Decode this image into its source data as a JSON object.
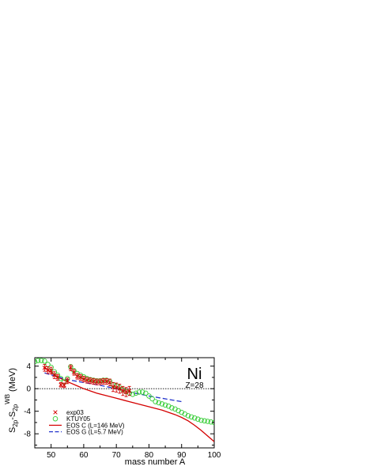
{
  "chart_data": {
    "type": "line",
    "xlabel": "mass number A",
    "ylabel_main": "S",
    "ylabel_sub1": "2p",
    "ylabel_mid": "-S",
    "ylabel_sub2": "2p",
    "ylabel_sup": "WB",
    "ylabel_unit": "(MeV)",
    "element_symbol": "Ni",
    "z_label": "Z=28",
    "xlim": [
      45,
      100
    ],
    "ylim": [
      -10.5,
      5.5
    ],
    "x_ticks": [
      50,
      60,
      70,
      80,
      90,
      100
    ],
    "y_ticks": [
      4,
      0,
      -4,
      -8
    ],
    "x_tick_labels": [
      "50",
      "60",
      "70",
      "80",
      "90",
      "100"
    ],
    "y_tick_labels": [
      "4",
      "0",
      "-4",
      "-8"
    ],
    "zero_line": true,
    "legend_position": "bottom-left",
    "series": [
      {
        "name": "exp03",
        "kind": "points-errorbars",
        "marker": "x",
        "color": "#d40000",
        "x": [
          48,
          49,
          50,
          51,
          52,
          53,
          54,
          55,
          56,
          57,
          58,
          59,
          60,
          61,
          62,
          63,
          64,
          65,
          66,
          67,
          68,
          69,
          70,
          71,
          72,
          73,
          74
        ],
        "y": [
          3.7,
          3.3,
          3.2,
          2.4,
          2.0,
          0.7,
          0.6,
          1.4,
          3.7,
          2.9,
          2.2,
          2.0,
          1.7,
          1.5,
          1.4,
          1.3,
          1.2,
          1.2,
          1.3,
          1.3,
          1.1,
          0.3,
          0.2,
          0.0,
          -0.4,
          -0.6,
          -0.4
        ],
        "err": [
          0.6,
          0.6,
          0.6,
          0.6,
          0.5,
          0.4,
          0.4,
          0.5,
          0.5,
          0.5,
          0.5,
          0.5,
          0.5,
          0.5,
          0.5,
          0.5,
          0.5,
          0.5,
          0.5,
          0.5,
          0.6,
          0.8,
          0.8,
          0.8,
          0.8,
          0.8,
          0.8
        ]
      },
      {
        "name": "KTUY05",
        "kind": "points",
        "marker": "circle",
        "color": "#33cc33",
        "x": [
          45,
          46,
          47,
          48,
          49,
          50,
          51,
          52,
          53,
          54,
          55,
          56,
          57,
          58,
          59,
          60,
          61,
          62,
          63,
          64,
          65,
          66,
          67,
          68,
          69,
          70,
          71,
          72,
          73,
          74,
          75,
          76,
          77,
          78,
          79,
          80,
          81,
          82,
          83,
          84,
          85,
          86,
          87,
          88,
          89,
          90,
          91,
          92,
          93,
          94,
          95,
          96,
          97,
          98,
          99,
          100
        ],
        "y": [
          4.8,
          5.0,
          5.0,
          4.9,
          4.3,
          3.8,
          3.0,
          2.4,
          1.8,
          1.2,
          1.8,
          3.9,
          3.2,
          2.7,
          2.4,
          2.1,
          1.8,
          1.6,
          1.5,
          1.4,
          1.4,
          1.5,
          1.5,
          1.3,
          0.7,
          0.5,
          0.2,
          -0.2,
          -0.5,
          -0.8,
          -1.0,
          -0.8,
          -0.6,
          -0.6,
          -0.8,
          -1.3,
          -1.8,
          -2.3,
          -2.5,
          -2.7,
          -2.9,
          -3.1,
          -3.4,
          -3.6,
          -3.9,
          -4.2,
          -4.5,
          -4.8,
          -5.0,
          -5.2,
          -5.4,
          -5.6,
          -5.7,
          -5.8,
          -5.9,
          -6.0
        ]
      },
      {
        "name": "EOS C (L=146 MeV)",
        "kind": "line",
        "style": "solid",
        "color": "#d40000",
        "x": [
          48,
          50,
          52,
          54,
          56,
          58,
          60,
          62,
          64,
          66,
          68,
          70,
          72,
          74,
          76,
          78,
          80,
          82,
          84,
          86,
          88,
          90,
          92,
          94,
          96,
          98,
          100
        ],
        "y": [
          3.8,
          2.9,
          2.1,
          1.5,
          1.0,
          0.5,
          0.0,
          -0.4,
          -0.8,
          -1.1,
          -1.4,
          -1.7,
          -2.0,
          -2.3,
          -2.6,
          -2.9,
          -3.2,
          -3.5,
          -3.8,
          -4.2,
          -4.6,
          -5.1,
          -5.7,
          -6.5,
          -7.4,
          -8.4,
          -9.4
        ]
      },
      {
        "name": "EOS G (L=5.7 MeV)",
        "kind": "line",
        "style": "dashed",
        "color": "#2233cc",
        "x": [
          48,
          55,
          60,
          65,
          70,
          75,
          80,
          85,
          90
        ],
        "y": [
          2.8,
          1.6,
          1.1,
          0.6,
          0.0,
          -0.7,
          -1.3,
          -1.8,
          -2.3
        ]
      }
    ]
  }
}
